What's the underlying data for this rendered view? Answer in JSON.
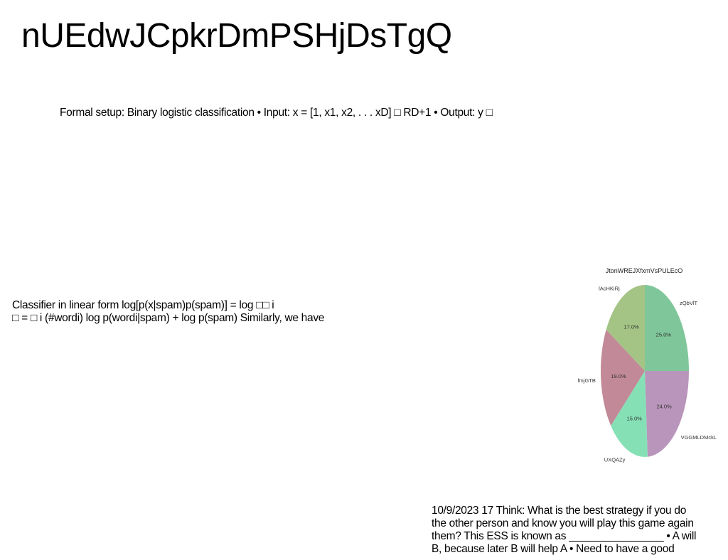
{
  "slide": {
    "title": "nUEdwJCpkrDmPSHjDsTgQ",
    "block1": "Formal setup: Binary logistic classification • Input: x = [1, x1, x2, . . . xD] □ RD+1 • Output: y □",
    "block2": {
      "line1": "Classifier in linear form log[p(x|spam)p(spam)] = log □□ i",
      "line2": "□ = □ i (#wordi) log p(wordi|spam) + log p(spam) Similarly, we have"
    },
    "block3": {
      "line1": "10/9/2023 17 Think: What is the best strategy if you do",
      "line2": "the other person and know you will play this game again",
      "line3": "them? This ESS is known as ________________ • A will",
      "line4": "B, because later B will help A • Need to have a good"
    }
  },
  "chart_data": {
    "type": "pie",
    "title": "JtonWREJXfxmVsPULEcO",
    "start_angle_deg": 90,
    "direction": "clockwise",
    "slices": [
      {
        "label": "zQbVlT",
        "value": 25.0,
        "pct_label": "25.0%",
        "color": "#7fc79a"
      },
      {
        "label": "VGGMLDMckL",
        "value": 24.0,
        "pct_label": "24.0%",
        "color": "#b995bb"
      },
      {
        "label": "UXQAZy",
        "value": 15.0,
        "pct_label": "15.0%",
        "color": "#86e0b6"
      },
      {
        "label": "fmjGTB",
        "value": 19.0,
        "pct_label": "19.0%",
        "color": "#c28a98"
      },
      {
        "label": "lAcHKiRj",
        "value": 17.0,
        "pct_label": "17.0%",
        "color": "#a3c485"
      }
    ]
  }
}
